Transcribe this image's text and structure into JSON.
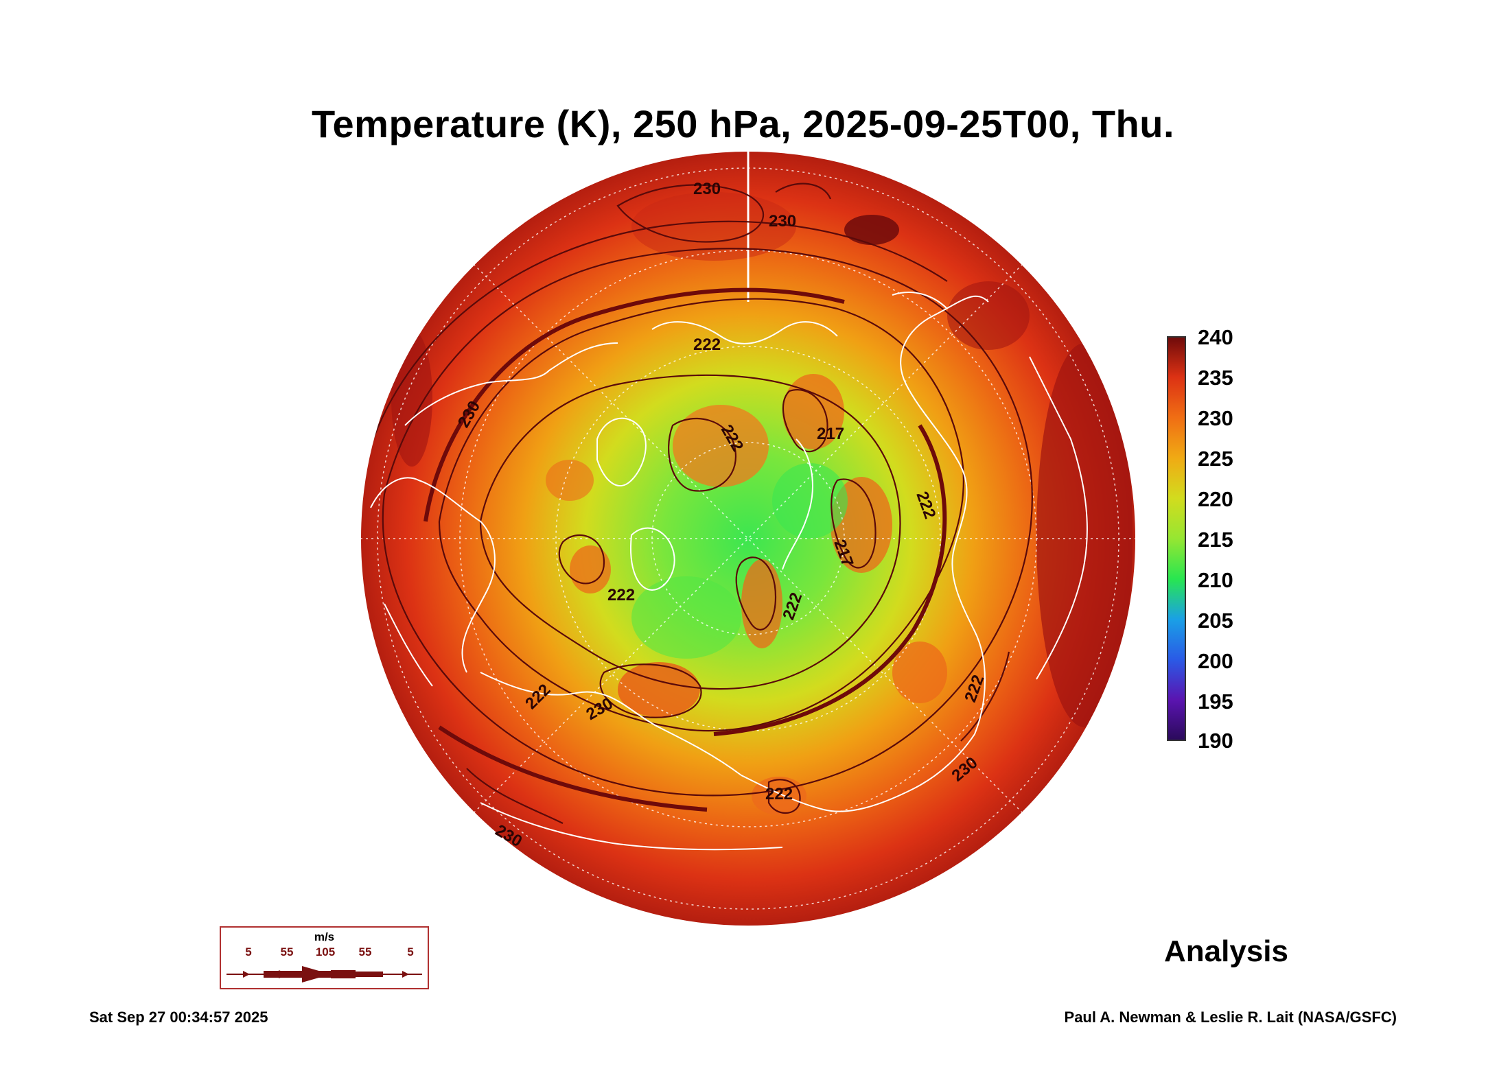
{
  "title": "Temperature (K), 250 hPa, 2025-09-25T00, Thu.",
  "colorbar": {
    "labels": [
      "240",
      "235",
      "230",
      "225",
      "220",
      "215",
      "210",
      "205",
      "200",
      "195",
      "190"
    ],
    "min": 190,
    "max": 240,
    "colors": [
      "#2a0a5a",
      "#5a14b0",
      "#2a5ae6",
      "#1aa0e6",
      "#1ad2b4",
      "#28e650",
      "#96e632",
      "#d2dc1e",
      "#f0aa14",
      "#f06e14",
      "#dc3214",
      "#a01410",
      "#6e0a0a"
    ]
  },
  "contour_labels": [
    "230",
    "230",
    "230",
    "230",
    "230",
    "230",
    "222",
    "222",
    "222",
    "222",
    "222",
    "222",
    "222",
    "222",
    "217",
    "217"
  ],
  "wind_legend": {
    "units": "m/s",
    "values": [
      "5",
      "55",
      "105",
      "55",
      "5"
    ],
    "color": "#7a1010"
  },
  "analysis_label": "Analysis",
  "timestamp": "Sat Sep 27 00:34:57 2025",
  "credit": "Paul A. Newman & Leslie R. Lait (NASA/GSFC)"
}
